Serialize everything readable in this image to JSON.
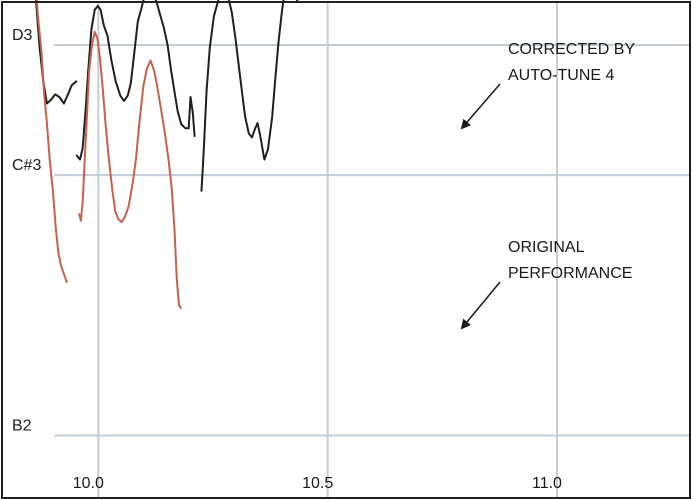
{
  "chart_data": {
    "type": "line",
    "title": "",
    "xlabel": "",
    "ylabel": "",
    "xlim": [
      9.79,
      11.29
    ],
    "ylim": [
      46.52,
      50.33
    ],
    "grid": true,
    "x_ticks": [
      {
        "value": 10.0,
        "label": "10.0"
      },
      {
        "value": 10.5,
        "label": "10.5"
      },
      {
        "value": 11.0,
        "label": "11.0"
      }
    ],
    "y_ticks": [
      {
        "value": 50,
        "label": "D3"
      },
      {
        "value": 49,
        "label": "C#3"
      },
      {
        "value": 47,
        "label": "B2"
      }
    ],
    "annotations": [
      {
        "id": "corrected",
        "lines": [
          "CORRECTED BY",
          "AUTO-TUNE 4"
        ],
        "points_to": "corrected"
      },
      {
        "id": "original",
        "lines": [
          "ORIGINAL",
          "PERFORMANCE"
        ],
        "points_to": "original"
      }
    ],
    "series": [
      {
        "id": "corrected",
        "color": "#1f1f1f",
        "segments": [
          [
            [
              9.848,
              50.65
            ],
            [
              9.857,
              50.53
            ],
            [
              9.864,
              50.35
            ],
            [
              9.872,
              49.98
            ],
            [
              9.88,
              49.72
            ],
            [
              9.888,
              49.55
            ],
            [
              9.897,
              49.58
            ],
            [
              9.906,
              49.62
            ],
            [
              9.915,
              49.6
            ],
            [
              9.925,
              49.55
            ],
            [
              9.935,
              49.63
            ],
            [
              9.942,
              49.69
            ],
            [
              9.952,
              49.72
            ]
          ],
          [
            [
              9.953,
              49.15
            ],
            [
              9.96,
              49.12
            ],
            [
              9.966,
              49.21
            ],
            [
              9.972,
              49.49
            ],
            [
              9.978,
              49.8
            ],
            [
              9.985,
              50.12
            ],
            [
              9.992,
              50.27
            ],
            [
              9.999,
              50.3
            ],
            [
              10.005,
              50.27
            ],
            [
              10.012,
              50.15
            ],
            [
              10.02,
              50.07
            ],
            [
              10.028,
              49.89
            ],
            [
              10.038,
              49.72
            ],
            [
              10.048,
              49.61
            ],
            [
              10.056,
              49.57
            ],
            [
              10.064,
              49.61
            ],
            [
              10.071,
              49.71
            ],
            [
              10.079,
              49.96
            ],
            [
              10.086,
              50.18
            ],
            [
              10.094,
              50.28
            ],
            [
              10.101,
              50.38
            ],
            [
              10.11,
              50.43
            ],
            [
              10.118,
              50.4
            ],
            [
              10.127,
              50.33
            ],
            [
              10.135,
              50.23
            ],
            [
              10.143,
              50.13
            ],
            [
              10.151,
              50.0
            ],
            [
              10.158,
              49.82
            ],
            [
              10.166,
              49.64
            ],
            [
              10.173,
              49.49
            ],
            [
              10.181,
              49.39
            ],
            [
              10.19,
              49.36
            ],
            [
              10.197,
              49.36
            ],
            [
              10.201,
              49.6
            ],
            [
              10.206,
              49.48
            ],
            [
              10.21,
              49.3
            ]
          ],
          [
            [
              10.225,
              48.88
            ],
            [
              10.23,
              49.2
            ],
            [
              10.236,
              49.65
            ],
            [
              10.243,
              49.98
            ],
            [
              10.252,
              50.22
            ],
            [
              10.262,
              50.35
            ],
            [
              10.272,
              50.43
            ],
            [
              10.281,
              50.4
            ],
            [
              10.291,
              50.25
            ],
            [
              10.299,
              50.05
            ],
            [
              10.307,
              49.82
            ],
            [
              10.314,
              49.62
            ],
            [
              10.32,
              49.45
            ],
            [
              10.328,
              49.32
            ],
            [
              10.335,
              49.29
            ],
            [
              10.342,
              49.36
            ],
            [
              10.347,
              49.4
            ],
            [
              10.352,
              49.32
            ],
            [
              10.357,
              49.22
            ],
            [
              10.362,
              49.12
            ],
            [
              10.37,
              49.2
            ],
            [
              10.379,
              49.45
            ],
            [
              10.386,
              49.75
            ],
            [
              10.393,
              50.03
            ],
            [
              10.4,
              50.25
            ],
            [
              10.407,
              50.43
            ],
            [
              10.415,
              50.56
            ],
            [
              10.421,
              50.61
            ],
            [
              10.426,
              50.56
            ],
            [
              10.43,
              50.42
            ],
            [
              10.434,
              50.33
            ]
          ]
        ]
      },
      {
        "id": "original",
        "color": "#c8604e",
        "segments": [
          [
            [
              9.848,
              50.66
            ],
            [
              9.853,
              50.72
            ],
            [
              9.858,
              50.62
            ],
            [
              9.863,
              50.45
            ],
            [
              9.869,
              50.2
            ],
            [
              9.876,
              49.95
            ],
            [
              9.882,
              49.62
            ],
            [
              9.888,
              49.4
            ],
            [
              9.894,
              49.12
            ],
            [
              9.901,
              48.88
            ],
            [
              9.907,
              48.6
            ],
            [
              9.913,
              48.4
            ],
            [
              9.919,
              48.3
            ],
            [
              9.925,
              48.24
            ],
            [
              9.931,
              48.18
            ]
          ],
          [
            [
              9.958,
              48.7
            ],
            [
              9.962,
              48.65
            ],
            [
              9.966,
              48.8
            ],
            [
              9.97,
              49.1
            ],
            [
              9.975,
              49.45
            ],
            [
              9.98,
              49.8
            ],
            [
              9.986,
              50.0
            ],
            [
              9.992,
              50.1
            ],
            [
              9.998,
              50.05
            ],
            [
              10.004,
              49.88
            ],
            [
              10.01,
              49.65
            ],
            [
              10.016,
              49.38
            ],
            [
              10.023,
              49.12
            ],
            [
              10.03,
              48.9
            ],
            [
              10.037,
              48.72
            ],
            [
              10.044,
              48.66
            ],
            [
              10.051,
              48.64
            ],
            [
              10.058,
              48.68
            ],
            [
              10.066,
              48.76
            ],
            [
              10.074,
              48.92
            ],
            [
              10.082,
              49.12
            ],
            [
              10.09,
              49.42
            ],
            [
              10.098,
              49.68
            ],
            [
              10.106,
              49.82
            ],
            [
              10.114,
              49.88
            ],
            [
              10.122,
              49.8
            ],
            [
              10.13,
              49.65
            ],
            [
              10.138,
              49.48
            ],
            [
              10.146,
              49.3
            ],
            [
              10.153,
              49.12
            ],
            [
              10.16,
              48.9
            ],
            [
              10.166,
              48.58
            ],
            [
              10.171,
              48.2
            ],
            [
              10.176,
              48.0
            ],
            [
              10.18,
              47.98
            ]
          ]
        ]
      }
    ]
  }
}
